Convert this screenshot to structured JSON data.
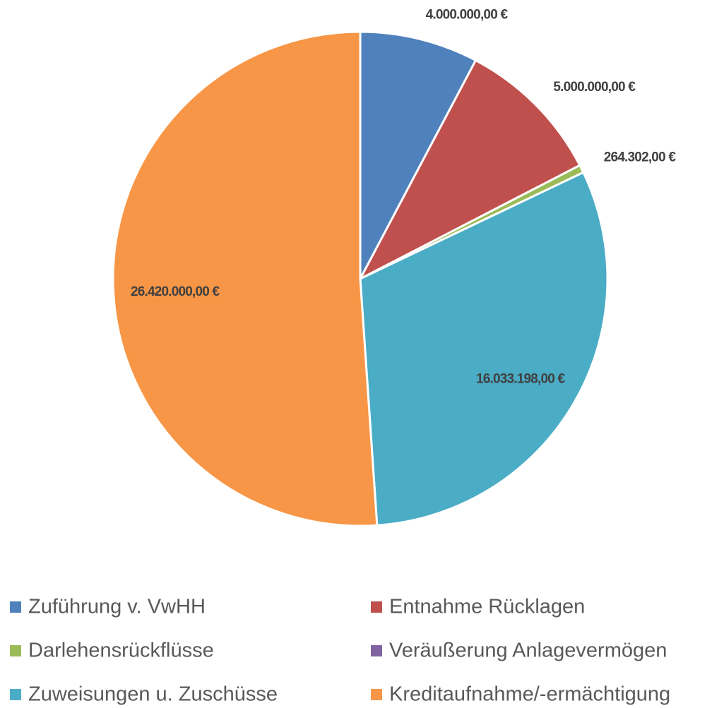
{
  "chart_data": {
    "type": "pie",
    "categories": [
      "Zuführung v. VwHH",
      "Entnahme Rücklagen",
      "Darlehensrückflüsse",
      "Veräußerung Anlagevermögen",
      "Zuweisungen u. Zuschüsse",
      "Kreditaufnahme/-ermächtigung"
    ],
    "values": [
      4000000,
      5000000,
      264302,
      0,
      16033198,
      26420000
    ],
    "value_labels": [
      "4.000.000,00 €",
      "5.000.000,00 €",
      "264.302,00 €",
      null,
      "16.033.198,00 €",
      "26.420.000,00 €"
    ],
    "colors": [
      "#4f81bd",
      "#c0504d",
      "#9bbb59",
      "#8064a2",
      "#4bacc6",
      "#f79646"
    ],
    "legend": "bottom"
  }
}
